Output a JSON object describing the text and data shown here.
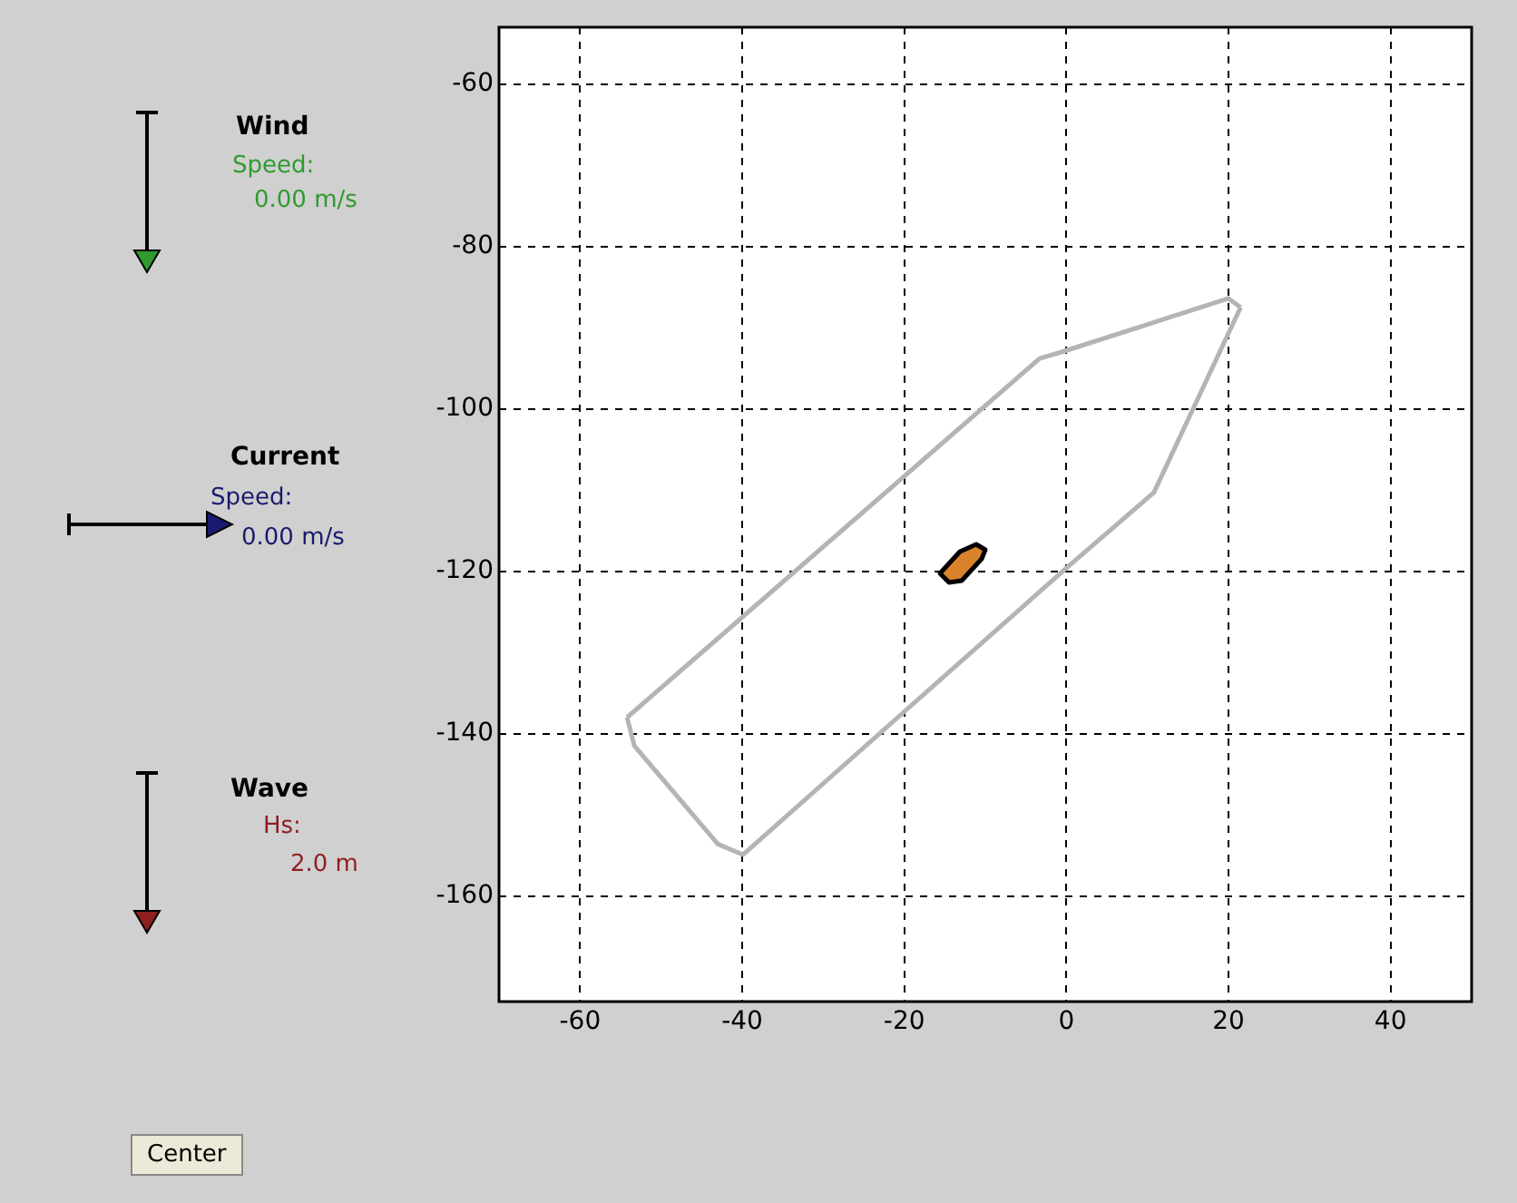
{
  "chart_data": {
    "type": "line",
    "series": [
      {
        "color": "#b4b4b4",
        "x": [
          -54.2,
          -3.3,
          -0.6,
          20,
          21.5
        ],
        "values": [
          -138,
          -93.8,
          -93,
          -86.4,
          -87.5
        ]
      },
      {
        "color": "#b4b4b4",
        "x": [
          -54.2,
          -53.3,
          -43,
          -39.9,
          0,
          10.8,
          21.5
        ],
        "values": [
          -138,
          -141.5,
          -153.6,
          -154.9,
          -119.6,
          -110.3,
          -87.5
        ]
      }
    ],
    "xlim": [
      -70,
      50
    ],
    "xticks": [
      -60,
      -40,
      -20,
      0,
      20,
      40
    ],
    "ylim": [
      -173,
      -53
    ],
    "yticks": [
      -60,
      -80,
      -100,
      -120,
      -140,
      -160
    ],
    "grid": true,
    "marker": "none",
    "line_style": "solid",
    "annotations": [
      "Wind",
      "Speed:",
      "0.00 m/s",
      "Current",
      "Speed:",
      "0.00 m/s",
      "Wave",
      "Hs:",
      "2.0 m",
      "Center"
    ]
  }
}
